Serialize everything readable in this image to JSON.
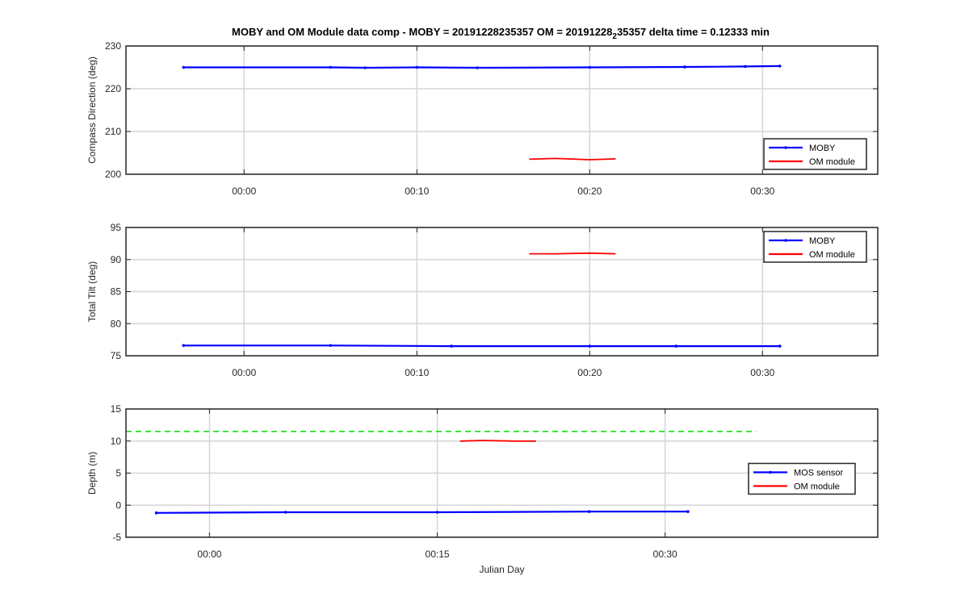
{
  "chart_data": [
    {
      "type": "line",
      "title_parts": [
        "MOBY and OM Module data comp - MOBY = 20191228235357 OM = 20191228",
        "2",
        "35357 delta time = 0.12333 min"
      ],
      "ylabel": "Compass Direction (deg)",
      "xlabel": "",
      "xlim": [
        "23:53:10",
        "00:36:40"
      ],
      "ylim": [
        200,
        230
      ],
      "xticks": [
        "00:00",
        "00:10",
        "00:20",
        "00:30"
      ],
      "yticks": [
        200,
        210,
        220,
        230
      ],
      "grid": true,
      "legend_position": "bottom-right",
      "series": [
        {
          "name": "MOBY",
          "color": "#0000ff",
          "x": [
            "23:56:30",
            "00:05:00",
            "00:07:00",
            "00:10:00",
            "00:13:30",
            "00:20:00",
            "00:25:30",
            "00:29:00",
            "00:31:00"
          ],
          "y": [
            225.0,
            225.0,
            224.9,
            225.0,
            224.9,
            225.0,
            225.1,
            225.2,
            225.3
          ]
        },
        {
          "name": "OM module",
          "color": "#ff0000",
          "x": [
            "00:16:30",
            "00:18:00",
            "00:20:00",
            "00:21:30"
          ],
          "y": [
            203.5,
            203.7,
            203.4,
            203.6
          ]
        }
      ]
    },
    {
      "type": "line",
      "ylabel": "Total Tilt (deg)",
      "xlabel": "",
      "xlim": [
        "23:53:10",
        "00:36:40"
      ],
      "ylim": [
        75,
        95
      ],
      "xticks": [
        "00:00",
        "00:10",
        "00:20",
        "00:30"
      ],
      "yticks": [
        75,
        80,
        85,
        90,
        95
      ],
      "grid": true,
      "legend_position": "top-right",
      "series": [
        {
          "name": "MOBY",
          "color": "#0000ff",
          "x": [
            "23:56:30",
            "00:05:00",
            "00:12:00",
            "00:20:00",
            "00:25:00",
            "00:31:00"
          ],
          "y": [
            76.6,
            76.6,
            76.5,
            76.5,
            76.5,
            76.5
          ]
        },
        {
          "name": "OM module",
          "color": "#ff0000",
          "x": [
            "00:16:30",
            "00:18:00",
            "00:20:00",
            "00:21:30"
          ],
          "y": [
            90.9,
            90.9,
            91.0,
            90.9
          ]
        }
      ]
    },
    {
      "type": "line",
      "ylabel": "Depth (m)",
      "xlabel": "Julian Day",
      "xlim": [
        "23:54:30",
        "00:44:00"
      ],
      "ylim": [
        -5,
        15
      ],
      "xticks": [
        "00:00",
        "00:15",
        "00:30"
      ],
      "yticks": [
        -5,
        0,
        5,
        10,
        15
      ],
      "grid": true,
      "legend_position": "middle-right",
      "reference_line": {
        "y": 11.5,
        "color": "#00dd00",
        "style": "dashed",
        "x_range": [
          "23:54:30",
          "00:36:00"
        ]
      },
      "series": [
        {
          "name": "MOS sensor",
          "color": "#0000ff",
          "x": [
            "23:56:30",
            "00:05:00",
            "00:15:00",
            "00:25:00",
            "00:31:30"
          ],
          "y": [
            -1.2,
            -1.1,
            -1.1,
            -1.0,
            -1.0
          ]
        },
        {
          "name": "OM module",
          "color": "#ff0000",
          "x": [
            "00:16:30",
            "00:18:00",
            "00:20:00",
            "00:21:30"
          ],
          "y": [
            10.0,
            10.1,
            10.0,
            10.0
          ]
        }
      ]
    }
  ]
}
